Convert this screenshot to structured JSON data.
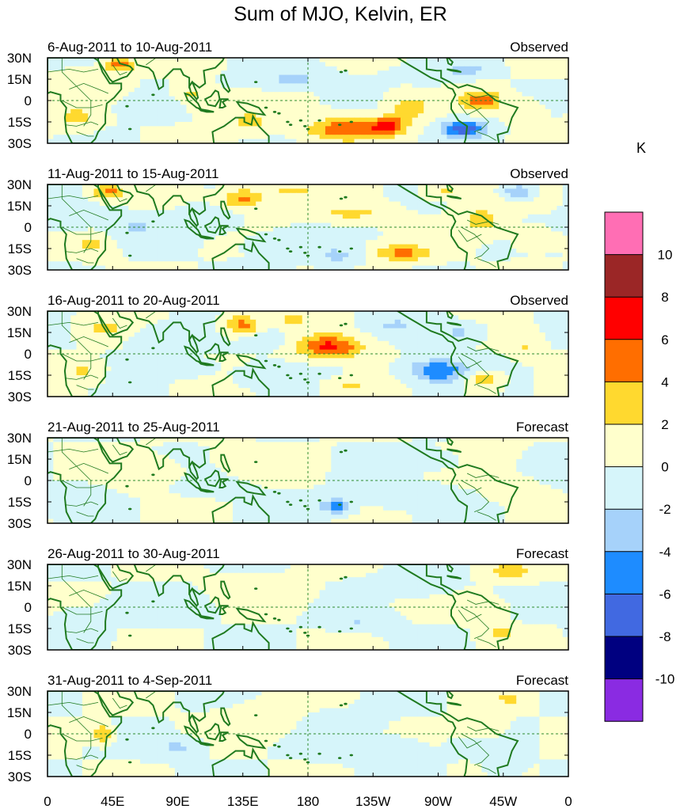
{
  "title": "Sum of MJO, Kelvin, ER",
  "units": "K",
  "lat_labels": [
    "30N",
    "15N",
    "0",
    "15S",
    "30S"
  ],
  "lon_labels": [
    "0",
    "45E",
    "90E",
    "135E",
    "180",
    "135W",
    "90W",
    "45W",
    "0"
  ],
  "colorbar": {
    "levels": [
      "10",
      "8",
      "6",
      "4",
      "2",
      "0",
      "-2",
      "-4",
      "-6",
      "-8",
      "-10"
    ],
    "colors": [
      "#ff6eb4",
      "#9b2626",
      "#ff0000",
      "#ff6e00",
      "#ffd92f",
      "#ffffcc",
      "#d6f5fa",
      "#a6d2fa",
      "#1e8cff",
      "#4169e1",
      "#000080",
      "#8a2be2"
    ]
  },
  "style": {
    "coast": "#1f7a1f",
    "dash": "#2e8b2e"
  },
  "panels": [
    {
      "date_range": "6-Aug-2011 to 10-Aug-2011",
      "status": "Observed"
    },
    {
      "date_range": "11-Aug-2011 to 15-Aug-2011",
      "status": "Observed"
    },
    {
      "date_range": "16-Aug-2011 to 20-Aug-2011",
      "status": "Observed"
    },
    {
      "date_range": "21-Aug-2011 to 25-Aug-2011",
      "status": "Forecast"
    },
    {
      "date_range": "26-Aug-2011 to 30-Aug-2011",
      "status": "Forecast"
    },
    {
      "date_range": "31-Aug-2011 to 4-Sep-2011",
      "status": "Forecast"
    }
  ],
  "anomaly_features": [
    [
      {
        "lon": 50,
        "lat": 25,
        "amp": 5,
        "rlon": 10,
        "rlat": 5
      },
      {
        "lon": 30,
        "lat": 18,
        "amp": 1.5,
        "rlon": 15,
        "rlat": 5
      },
      {
        "lon": 20,
        "lat": -12,
        "amp": 2.5,
        "rlon": 15,
        "rlat": 8
      },
      {
        "lon": 70,
        "lat": -5,
        "amp": -1.5,
        "rlon": 20,
        "rlat": 7
      },
      {
        "lon": 100,
        "lat": 5,
        "amp": 2.5,
        "rlon": 12,
        "rlat": 6
      },
      {
        "lon": 115,
        "lat": -5,
        "amp": 1.5,
        "rlon": 18,
        "rlat": 6
      },
      {
        "lon": 140,
        "lat": -15,
        "amp": 2.5,
        "rlon": 20,
        "rlat": 8
      },
      {
        "lon": 170,
        "lat": 15,
        "amp": -2.5,
        "rlon": 25,
        "rlat": 6
      },
      {
        "lon": 205,
        "lat": -20,
        "amp": 5.5,
        "rlon": 25,
        "rlat": 8
      },
      {
        "lon": 235,
        "lat": -18,
        "amp": 6.5,
        "rlon": 12,
        "rlat": 6
      },
      {
        "lon": 250,
        "lat": -5,
        "amp": 3,
        "rlon": 15,
        "rlat": 10
      },
      {
        "lon": 260,
        "lat": 18,
        "amp": -1.5,
        "rlon": 20,
        "rlat": 6
      },
      {
        "lon": 288,
        "lat": -20,
        "amp": -7,
        "rlon": 15,
        "rlat": 6
      },
      {
        "lon": 300,
        "lat": 0,
        "amp": 5,
        "rlon": 14,
        "rlat": 7
      },
      {
        "lon": 290,
        "lat": 22,
        "amp": -2.5,
        "rlon": 15,
        "rlat": 5
      },
      {
        "lon": 330,
        "lat": -8,
        "amp": 2,
        "rlon": 12,
        "rlat": 8
      }
    ],
    [
      {
        "lon": 42,
        "lat": 25,
        "amp": 4.5,
        "rlon": 12,
        "rlat": 5
      },
      {
        "lon": 15,
        "lat": 5,
        "amp": -2,
        "rlon": 15,
        "rlat": 8
      },
      {
        "lon": 30,
        "lat": -12,
        "amp": 2.5,
        "rlon": 12,
        "rlat": 8
      },
      {
        "lon": 60,
        "lat": 0,
        "amp": -2,
        "rlon": 20,
        "rlat": 8
      },
      {
        "lon": 110,
        "lat": 5,
        "amp": -2,
        "rlon": 18,
        "rlat": 8
      },
      {
        "lon": 135,
        "lat": 20,
        "amp": 4.5,
        "rlon": 15,
        "rlat": 7
      },
      {
        "lon": 170,
        "lat": 25,
        "amp": 2.5,
        "rlon": 20,
        "rlat": 5
      },
      {
        "lon": 160,
        "lat": -12,
        "amp": -2,
        "rlon": 20,
        "rlat": 7
      },
      {
        "lon": 210,
        "lat": 10,
        "amp": 2.5,
        "rlon": 25,
        "rlat": 6
      },
      {
        "lon": 200,
        "lat": -20,
        "amp": -2.5,
        "rlon": 18,
        "rlat": 6
      },
      {
        "lon": 245,
        "lat": -18,
        "amp": 4.5,
        "rlon": 20,
        "rlat": 6
      },
      {
        "lon": 300,
        "lat": 5,
        "amp": 3,
        "rlon": 15,
        "rlat": 10
      },
      {
        "lon": 325,
        "lat": 25,
        "amp": -4,
        "rlon": 10,
        "rlat": 5
      },
      {
        "lon": 275,
        "lat": 25,
        "amp": 2.5,
        "rlon": 15,
        "rlat": 5
      },
      {
        "lon": 335,
        "lat": -8,
        "amp": 2,
        "rlon": 12,
        "rlat": 7
      }
    ],
    [
      {
        "lon": 40,
        "lat": 18,
        "amp": 2.5,
        "rlon": 15,
        "rlat": 7
      },
      {
        "lon": 25,
        "lat": -12,
        "amp": 2.5,
        "rlon": 12,
        "rlat": 7
      },
      {
        "lon": 80,
        "lat": 10,
        "amp": -2,
        "rlon": 20,
        "rlat": 8
      },
      {
        "lon": 135,
        "lat": 20,
        "amp": 5,
        "rlon": 12,
        "rlat": 7
      },
      {
        "lon": 150,
        "lat": 10,
        "amp": -2,
        "rlon": 15,
        "rlat": 6
      },
      {
        "lon": 195,
        "lat": 5,
        "amp": 6.5,
        "rlon": 22,
        "rlat": 8
      },
      {
        "lon": 170,
        "lat": 25,
        "amp": 3,
        "rlon": 10,
        "rlat": 5
      },
      {
        "lon": 210,
        "lat": -22,
        "amp": 2.5,
        "rlon": 15,
        "rlat": 5
      },
      {
        "lon": 150,
        "lat": -15,
        "amp": -2,
        "rlon": 18,
        "rlat": 6
      },
      {
        "lon": 270,
        "lat": -12,
        "amp": -6,
        "rlon": 20,
        "rlat": 8
      },
      {
        "lon": 285,
        "lat": 15,
        "amp": -2.5,
        "rlon": 15,
        "rlat": 6
      },
      {
        "lon": 300,
        "lat": -18,
        "amp": 3.5,
        "rlon": 12,
        "rlat": 6
      },
      {
        "lon": 330,
        "lat": 5,
        "amp": 2,
        "rlon": 10,
        "rlat": 8
      },
      {
        "lon": 240,
        "lat": 20,
        "amp": -2,
        "rlon": 15,
        "rlat": 6
      },
      {
        "lon": 100,
        "lat": -10,
        "amp": -2,
        "rlon": 15,
        "rlat": 5
      }
    ],
    [
      {
        "lon": 20,
        "lat": -12,
        "amp": -1.5,
        "rlon": 15,
        "rlat": 8
      },
      {
        "lon": 70,
        "lat": 5,
        "amp": 1.2,
        "rlon": 25,
        "rlat": 10
      },
      {
        "lon": 150,
        "lat": 15,
        "amp": 1.2,
        "rlon": 30,
        "rlat": 8
      },
      {
        "lon": 110,
        "lat": -5,
        "amp": -1.5,
        "rlon": 20,
        "rlat": 6
      },
      {
        "lon": 200,
        "lat": -18,
        "amp": -6,
        "rlon": 10,
        "rlat": 5
      },
      {
        "lon": 240,
        "lat": -10,
        "amp": -1.5,
        "rlon": 25,
        "rlat": 8
      },
      {
        "lon": 300,
        "lat": 20,
        "amp": 1.2,
        "rlon": 20,
        "rlat": 8
      },
      {
        "lon": 320,
        "lat": -5,
        "amp": 1.2,
        "rlon": 15,
        "rlat": 8
      },
      {
        "lon": 270,
        "lat": 15,
        "amp": -1.5,
        "rlon": 20,
        "rlat": 6
      }
    ],
    [
      {
        "lon": 20,
        "lat": -10,
        "amp": -1.5,
        "rlon": 15,
        "rlat": 8
      },
      {
        "lon": 80,
        "lat": 0,
        "amp": -1.5,
        "rlon": 30,
        "rlat": 8
      },
      {
        "lon": 150,
        "lat": 10,
        "amp": 1.2,
        "rlon": 30,
        "rlat": 10
      },
      {
        "lon": 215,
        "lat": -10,
        "amp": -2,
        "rlon": 20,
        "rlat": 6
      },
      {
        "lon": 320,
        "lat": 25,
        "amp": 3,
        "rlon": 15,
        "rlat": 6
      },
      {
        "lon": 300,
        "lat": 0,
        "amp": 1.5,
        "rlon": 15,
        "rlat": 8
      },
      {
        "lon": 250,
        "lat": 15,
        "amp": -1.5,
        "rlon": 25,
        "rlat": 7
      },
      {
        "lon": 315,
        "lat": -18,
        "amp": 2.5,
        "rlon": 12,
        "rlat": 5
      }
    ],
    [
      {
        "lon": 38,
        "lat": 0,
        "amp": 4,
        "rlon": 6,
        "rlat": 6
      },
      {
        "lon": 90,
        "lat": -10,
        "amp": -2.5,
        "rlon": 15,
        "rlat": 6
      },
      {
        "lon": 150,
        "lat": 10,
        "amp": 1.2,
        "rlon": 30,
        "rlat": 10
      },
      {
        "lon": 200,
        "lat": 8,
        "amp": -1.5,
        "rlon": 25,
        "rlat": 7
      },
      {
        "lon": 230,
        "lat": -10,
        "amp": -1.5,
        "rlon": 25,
        "rlat": 8
      },
      {
        "lon": 320,
        "lat": 25,
        "amp": 2.5,
        "rlon": 10,
        "rlat": 5
      },
      {
        "lon": 300,
        "lat": 5,
        "amp": 1.2,
        "rlon": 15,
        "rlat": 8
      },
      {
        "lon": 315,
        "lat": -25,
        "amp": -2,
        "rlon": 10,
        "rlat": 5
      }
    ]
  ]
}
